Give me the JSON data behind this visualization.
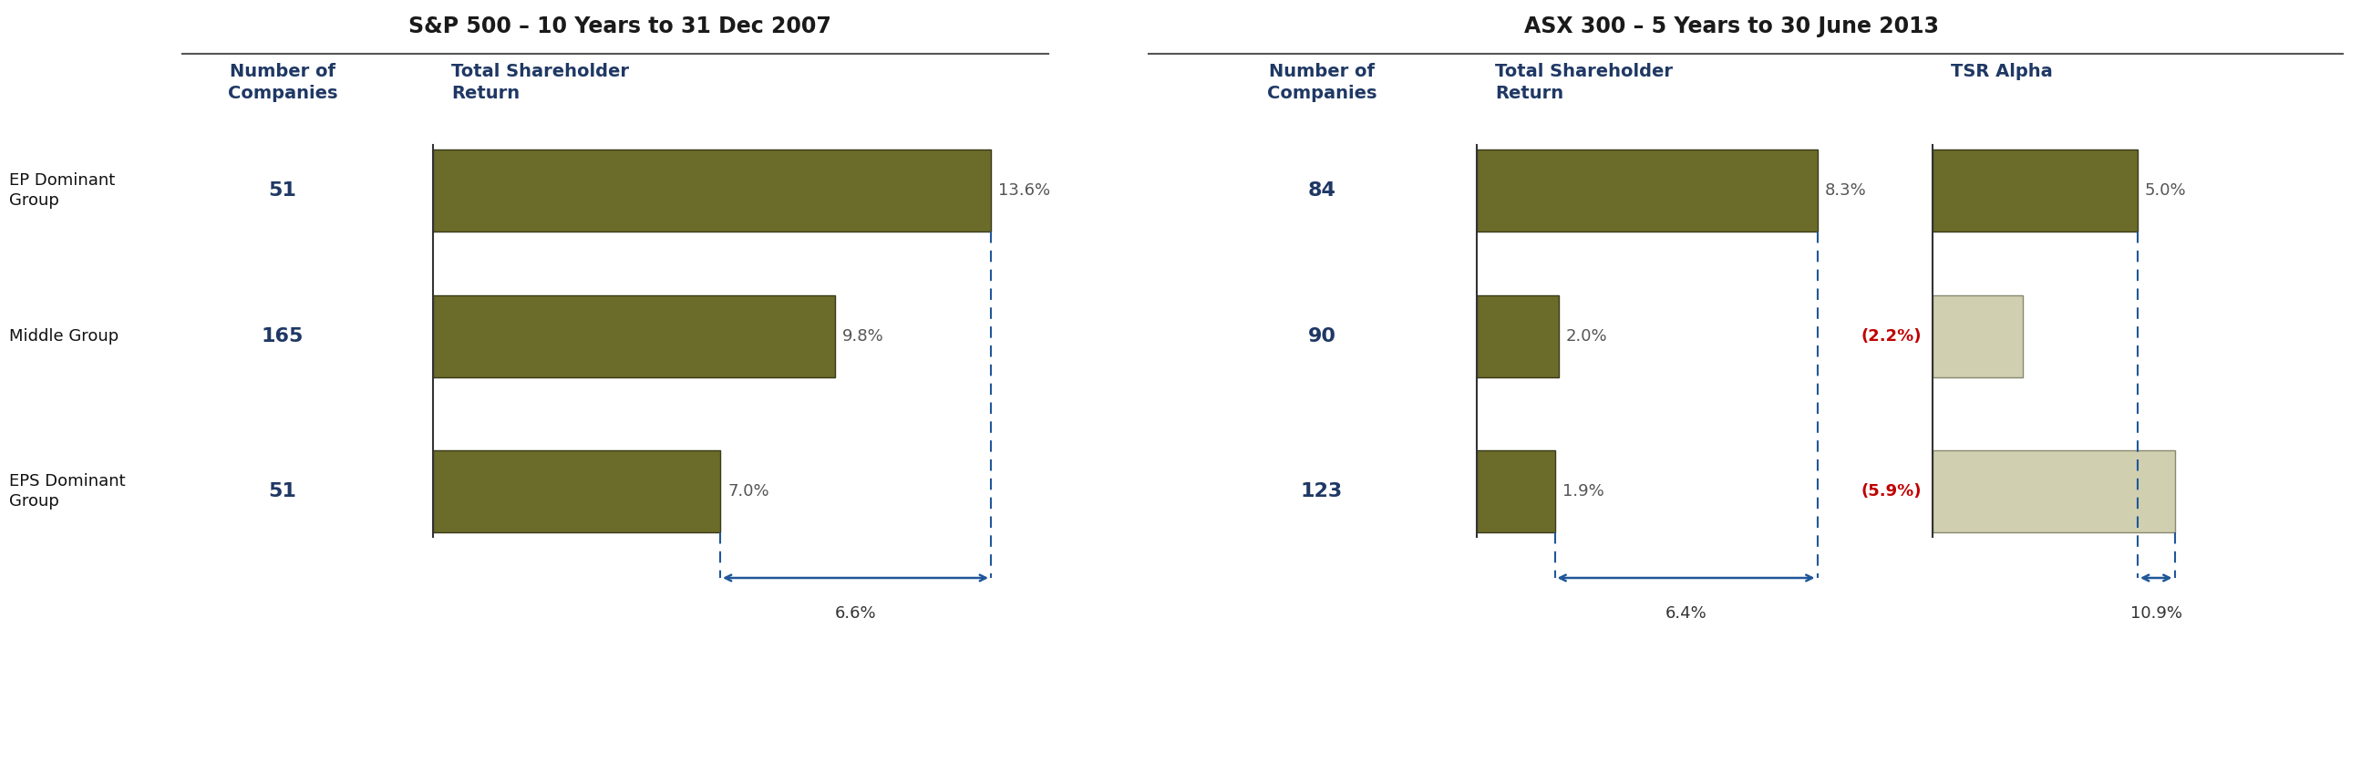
{
  "sp500_title": "S&P 500 – 10 Years to 31 Dec 2007",
  "asx300_title": "ASX 300 – 5 Years to 30 June 2013",
  "row_labels": [
    "EP Dominant\nGroup",
    "Middle Group",
    "EPS Dominant\nGroup"
  ],
  "sp500_companies": [
    "51",
    "165",
    "51"
  ],
  "sp500_tsr": [
    13.6,
    9.8,
    7.0
  ],
  "sp500_tsr_labels": [
    "13.6%",
    "9.8%",
    "7.0%"
  ],
  "sp500_spread": "6.6%",
  "asx300_companies": [
    "84",
    "90",
    "123"
  ],
  "asx300_tsr": [
    8.3,
    2.0,
    1.9
  ],
  "asx300_tsr_labels": [
    "8.3%",
    "2.0%",
    "1.9%"
  ],
  "asx300_spread": "6.4%",
  "tsr_alpha": [
    5.0,
    -2.2,
    -5.9
  ],
  "tsr_alpha_labels": [
    "5.0%",
    "(2.2%)",
    "(5.9%)"
  ],
  "tsr_alpha_spread": "10.9%",
  "bar_color_dark": "#6b6b2a",
  "bar_color_light": "#d0d0b0",
  "header_color": "#1f3864",
  "arrow_color": "#1f5799",
  "negative_label_color": "#c00000",
  "background_color": "#ffffff",
  "col_header_tsr": "Total Shareholder\nReturn",
  "col_header_companies": "Number of\nCompanies",
  "col_header_alpha": "TSR Alpha",
  "title_fontsize": 17,
  "header_fontsize": 14,
  "label_fontsize": 13,
  "value_fontsize": 13,
  "company_fontsize": 16,
  "spread_fontsize": 13
}
